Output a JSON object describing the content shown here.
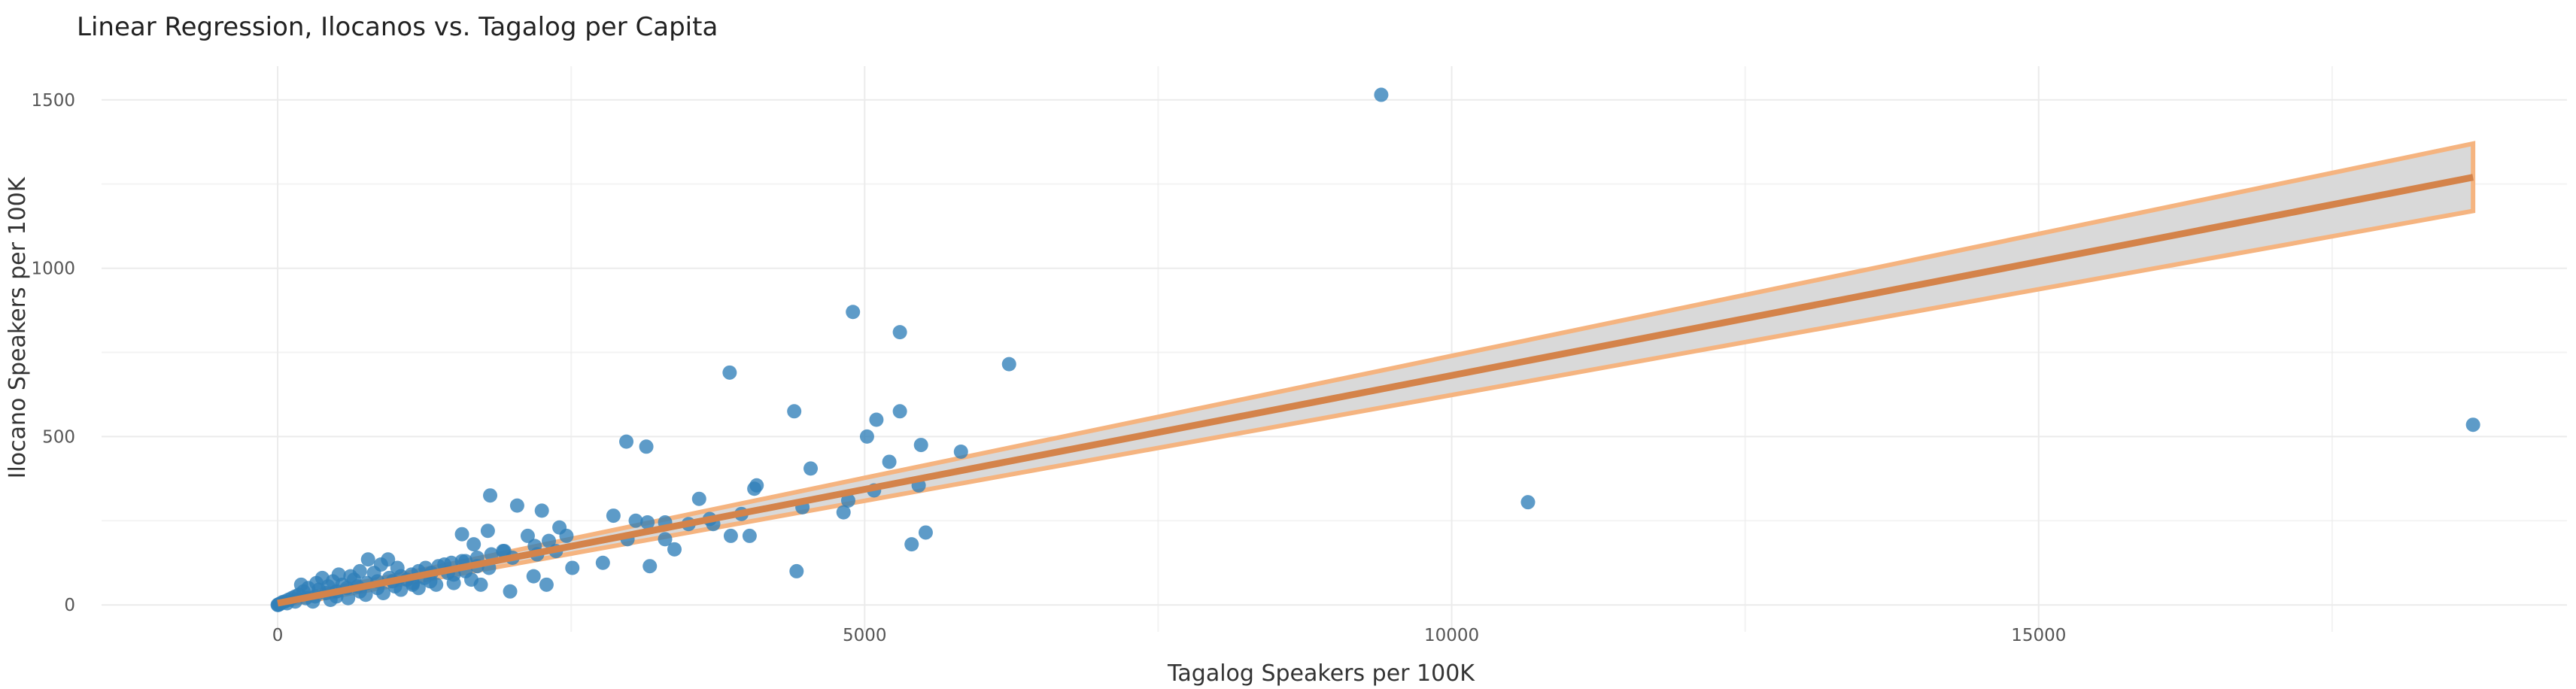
{
  "chart_data": {
    "type": "scatter",
    "title": "Linear Regression, Ilocanos vs. Tagalog per Capita",
    "xlabel": "Tagalog Speakers per 100K",
    "ylabel": "Ilocano Speakers per 100K",
    "xlim": [
      -1500,
      19500
    ],
    "ylim": [
      -80,
      1600
    ],
    "xticks": [
      0,
      5000,
      10000,
      15000
    ],
    "yticks": [
      0,
      500,
      1000,
      1500
    ],
    "grid": true,
    "legend": "none",
    "colors": {
      "points": "#2f7fb8",
      "fit_line": "#d4834a",
      "ribbon_fill": "#d9d9d9",
      "ribbon_edge": "#f5b480"
    },
    "series": [
      {
        "type": "scatter",
        "points": [
          [
            9400,
            1515
          ],
          [
            18700,
            535
          ],
          [
            10650,
            305
          ],
          [
            4900,
            870
          ],
          [
            5300,
            810
          ],
          [
            6230,
            715
          ],
          [
            3850,
            690
          ],
          [
            4400,
            575
          ],
          [
            5300,
            575
          ],
          [
            5100,
            550
          ],
          [
            5020,
            500
          ],
          [
            5480,
            475
          ],
          [
            5820,
            455
          ],
          [
            2970,
            485
          ],
          [
            3140,
            470
          ],
          [
            5210,
            425
          ],
          [
            4540,
            405
          ],
          [
            4080,
            355
          ],
          [
            4060,
            345
          ],
          [
            5460,
            355
          ],
          [
            5080,
            340
          ],
          [
            4860,
            310
          ],
          [
            3590,
            315
          ],
          [
            1810,
            325
          ],
          [
            2040,
            295
          ],
          [
            2250,
            280
          ],
          [
            2860,
            265
          ],
          [
            3050,
            250
          ],
          [
            3150,
            245
          ],
          [
            3300,
            245
          ],
          [
            3500,
            240
          ],
          [
            3680,
            255
          ],
          [
            3710,
            240
          ],
          [
            3950,
            270
          ],
          [
            4470,
            290
          ],
          [
            4820,
            275
          ],
          [
            5520,
            215
          ],
          [
            5400,
            180
          ],
          [
            4420,
            100
          ],
          [
            3170,
            115
          ],
          [
            2770,
            125
          ],
          [
            1790,
            220
          ],
          [
            1570,
            210
          ],
          [
            3860,
            205
          ],
          [
            4020,
            205
          ],
          [
            3300,
            195
          ],
          [
            3380,
            165
          ],
          [
            2980,
            195
          ],
          [
            2130,
            205
          ],
          [
            2400,
            230
          ],
          [
            2460,
            205
          ],
          [
            2310,
            190
          ],
          [
            2190,
            175
          ],
          [
            2370,
            160
          ],
          [
            2210,
            150
          ],
          [
            2510,
            110
          ],
          [
            2180,
            85
          ],
          [
            2290,
            60
          ],
          [
            2000,
            140
          ],
          [
            1930,
            160
          ],
          [
            1670,
            180
          ],
          [
            1570,
            130
          ],
          [
            1420,
            120
          ],
          [
            1310,
            95
          ],
          [
            1200,
            100
          ],
          [
            1730,
            60
          ],
          [
            1980,
            40
          ],
          [
            1150,
            60
          ],
          [
            940,
            135
          ],
          [
            880,
            120
          ],
          [
            1020,
            110
          ],
          [
            770,
            135
          ],
          [
            700,
            100
          ],
          [
            620,
            85
          ],
          [
            520,
            90
          ],
          [
            470,
            70
          ],
          [
            380,
            80
          ],
          [
            330,
            65
          ],
          [
            260,
            50
          ],
          [
            220,
            40
          ],
          [
            180,
            30
          ],
          [
            150,
            25
          ],
          [
            120,
            20
          ],
          [
            90,
            15
          ],
          [
            60,
            10
          ],
          [
            40,
            8
          ],
          [
            20,
            3
          ],
          [
            10,
            2
          ],
          [
            5,
            0
          ],
          [
            0,
            0
          ],
          [
            80,
            5
          ],
          [
            150,
            10
          ],
          [
            240,
            20
          ],
          [
            320,
            25
          ],
          [
            410,
            35
          ],
          [
            500,
            40
          ],
          [
            590,
            50
          ],
          [
            680,
            55
          ],
          [
            760,
            65
          ],
          [
            850,
            70
          ],
          [
            950,
            80
          ],
          [
            1050,
            85
          ],
          [
            1140,
            90
          ],
          [
            1260,
            110
          ],
          [
            1370,
            115
          ],
          [
            1480,
            125
          ],
          [
            1600,
            130
          ],
          [
            1700,
            140
          ],
          [
            1820,
            150
          ],
          [
            1920,
            160
          ],
          [
            300,
            10
          ],
          [
            450,
            15
          ],
          [
            600,
            20
          ],
          [
            750,
            30
          ],
          [
            900,
            35
          ],
          [
            1050,
            45
          ],
          [
            1200,
            50
          ],
          [
            1350,
            60
          ],
          [
            1500,
            65
          ],
          [
            1650,
            75
          ],
          [
            430,
            55
          ],
          [
            550,
            60
          ],
          [
            650,
            75
          ],
          [
            820,
            95
          ],
          [
            980,
            70
          ],
          [
            1100,
            75
          ],
          [
            1250,
            80
          ],
          [
            1450,
            95
          ],
          [
            1600,
            100
          ],
          [
            1800,
            110
          ],
          [
            200,
            60
          ],
          [
            350,
            45
          ],
          [
            500,
            25
          ],
          [
            700,
            40
          ],
          [
            850,
            50
          ],
          [
            1000,
            55
          ],
          [
            1150,
            65
          ],
          [
            1300,
            70
          ],
          [
            1500,
            90
          ],
          [
            1700,
            115
          ]
        ]
      },
      {
        "type": "line",
        "name": "",
        "x": [
          0,
          18700
        ],
        "y": [
          5,
          1270
        ],
        "ci_upper": [
          15,
          1370
        ],
        "ci_lower": [
          -5,
          1170
        ]
      }
    ]
  }
}
